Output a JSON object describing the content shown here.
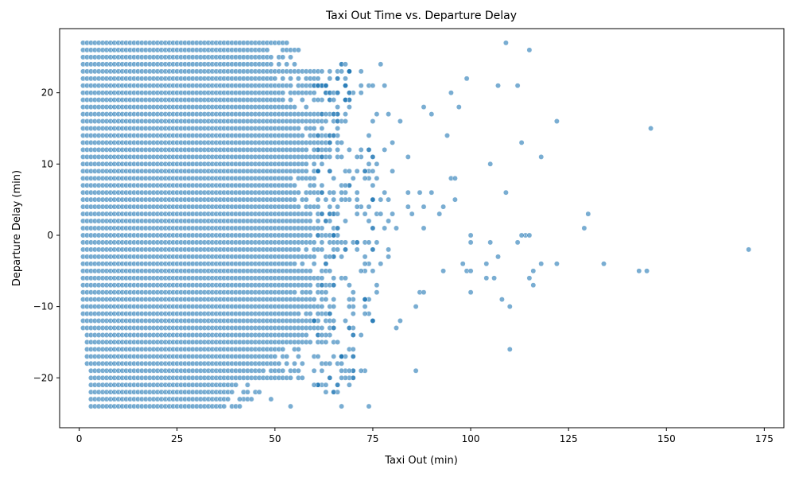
{
  "chart_data": {
    "type": "scatter",
    "title": "Taxi Out Time vs. Departure Delay",
    "xlabel": "Taxi Out (min)",
    "ylabel": "Departure Delay (min)",
    "xlim": [
      -5,
      180
    ],
    "ylim": [
      -27,
      29
    ],
    "x_ticks": [
      0,
      25,
      50,
      75,
      100,
      125,
      150,
      175
    ],
    "y_ticks": [
      -20,
      -10,
      0,
      10,
      20
    ],
    "grid": false,
    "marker_color": "#1f77b4",
    "marker_edge_color": "#ffffff",
    "marker_alpha": 0.6,
    "dense_region": {
      "description": "integer-valued points densely filling the lower-left region",
      "x_range": [
        1,
        67
      ],
      "y_range": [
        -24,
        27
      ]
    },
    "outliers": [
      [
        56,
        26
      ],
      [
        67,
        24
      ],
      [
        68,
        24
      ],
      [
        77,
        24
      ],
      [
        69,
        23
      ],
      [
        72,
        23
      ],
      [
        99,
        22
      ],
      [
        72,
        21
      ],
      [
        74,
        21
      ],
      [
        75,
        21
      ],
      [
        78,
        21
      ],
      [
        107,
        21
      ],
      [
        112,
        21
      ],
      [
        72,
        20
      ],
      [
        95,
        20
      ],
      [
        79,
        17
      ],
      [
        88,
        18
      ],
      [
        97,
        18
      ],
      [
        90,
        17
      ],
      [
        76,
        17
      ],
      [
        82,
        16
      ],
      [
        122,
        16
      ],
      [
        146,
        15
      ],
      [
        75,
        16
      ],
      [
        94,
        14
      ],
      [
        113,
        13
      ],
      [
        80,
        13
      ],
      [
        74,
        12
      ],
      [
        78,
        12
      ],
      [
        84,
        11
      ],
      [
        118,
        11
      ],
      [
        75,
        11
      ],
      [
        105,
        10
      ],
      [
        80,
        9
      ],
      [
        73,
        9
      ],
      [
        109,
        6
      ],
      [
        84,
        6
      ],
      [
        87,
        6
      ],
      [
        90,
        6
      ],
      [
        96,
        5
      ],
      [
        95,
        8
      ],
      [
        96,
        8
      ],
      [
        88,
        4
      ],
      [
        93,
        4
      ],
      [
        84,
        4
      ],
      [
        92,
        3
      ],
      [
        85,
        3
      ],
      [
        130,
        3
      ],
      [
        88,
        1
      ],
      [
        129,
        1
      ],
      [
        100,
        0
      ],
      [
        114,
        0
      ],
      [
        115,
        0
      ],
      [
        113,
        0
      ],
      [
        100,
        -1
      ],
      [
        105,
        -1
      ],
      [
        112,
        -1
      ],
      [
        171,
        -2
      ],
      [
        107,
        -3
      ],
      [
        122,
        -4
      ],
      [
        118,
        -4
      ],
      [
        134,
        -4
      ],
      [
        104,
        -4
      ],
      [
        98,
        -4
      ],
      [
        93,
        -5
      ],
      [
        99,
        -5
      ],
      [
        100,
        -5
      ],
      [
        116,
        -5
      ],
      [
        143,
        -5
      ],
      [
        145,
        -5
      ],
      [
        104,
        -6
      ],
      [
        106,
        -6
      ],
      [
        115,
        -6
      ],
      [
        116,
        -7
      ],
      [
        87,
        -8
      ],
      [
        100,
        -8
      ],
      [
        88,
        -8
      ],
      [
        108,
        -9
      ],
      [
        110,
        -10
      ],
      [
        86,
        -10
      ],
      [
        81,
        -13
      ],
      [
        82,
        -12
      ],
      [
        110,
        -16
      ],
      [
        86,
        -19
      ],
      [
        73,
        -19
      ],
      [
        72,
        -19
      ],
      [
        67,
        -20
      ],
      [
        64,
        -20
      ],
      [
        67,
        -24
      ],
      [
        74,
        -24
      ],
      [
        54,
        -24
      ],
      [
        109,
        27
      ],
      [
        115,
        26
      ],
      [
        49,
        -23
      ],
      [
        44,
        -23
      ],
      [
        41,
        -23
      ]
    ]
  }
}
